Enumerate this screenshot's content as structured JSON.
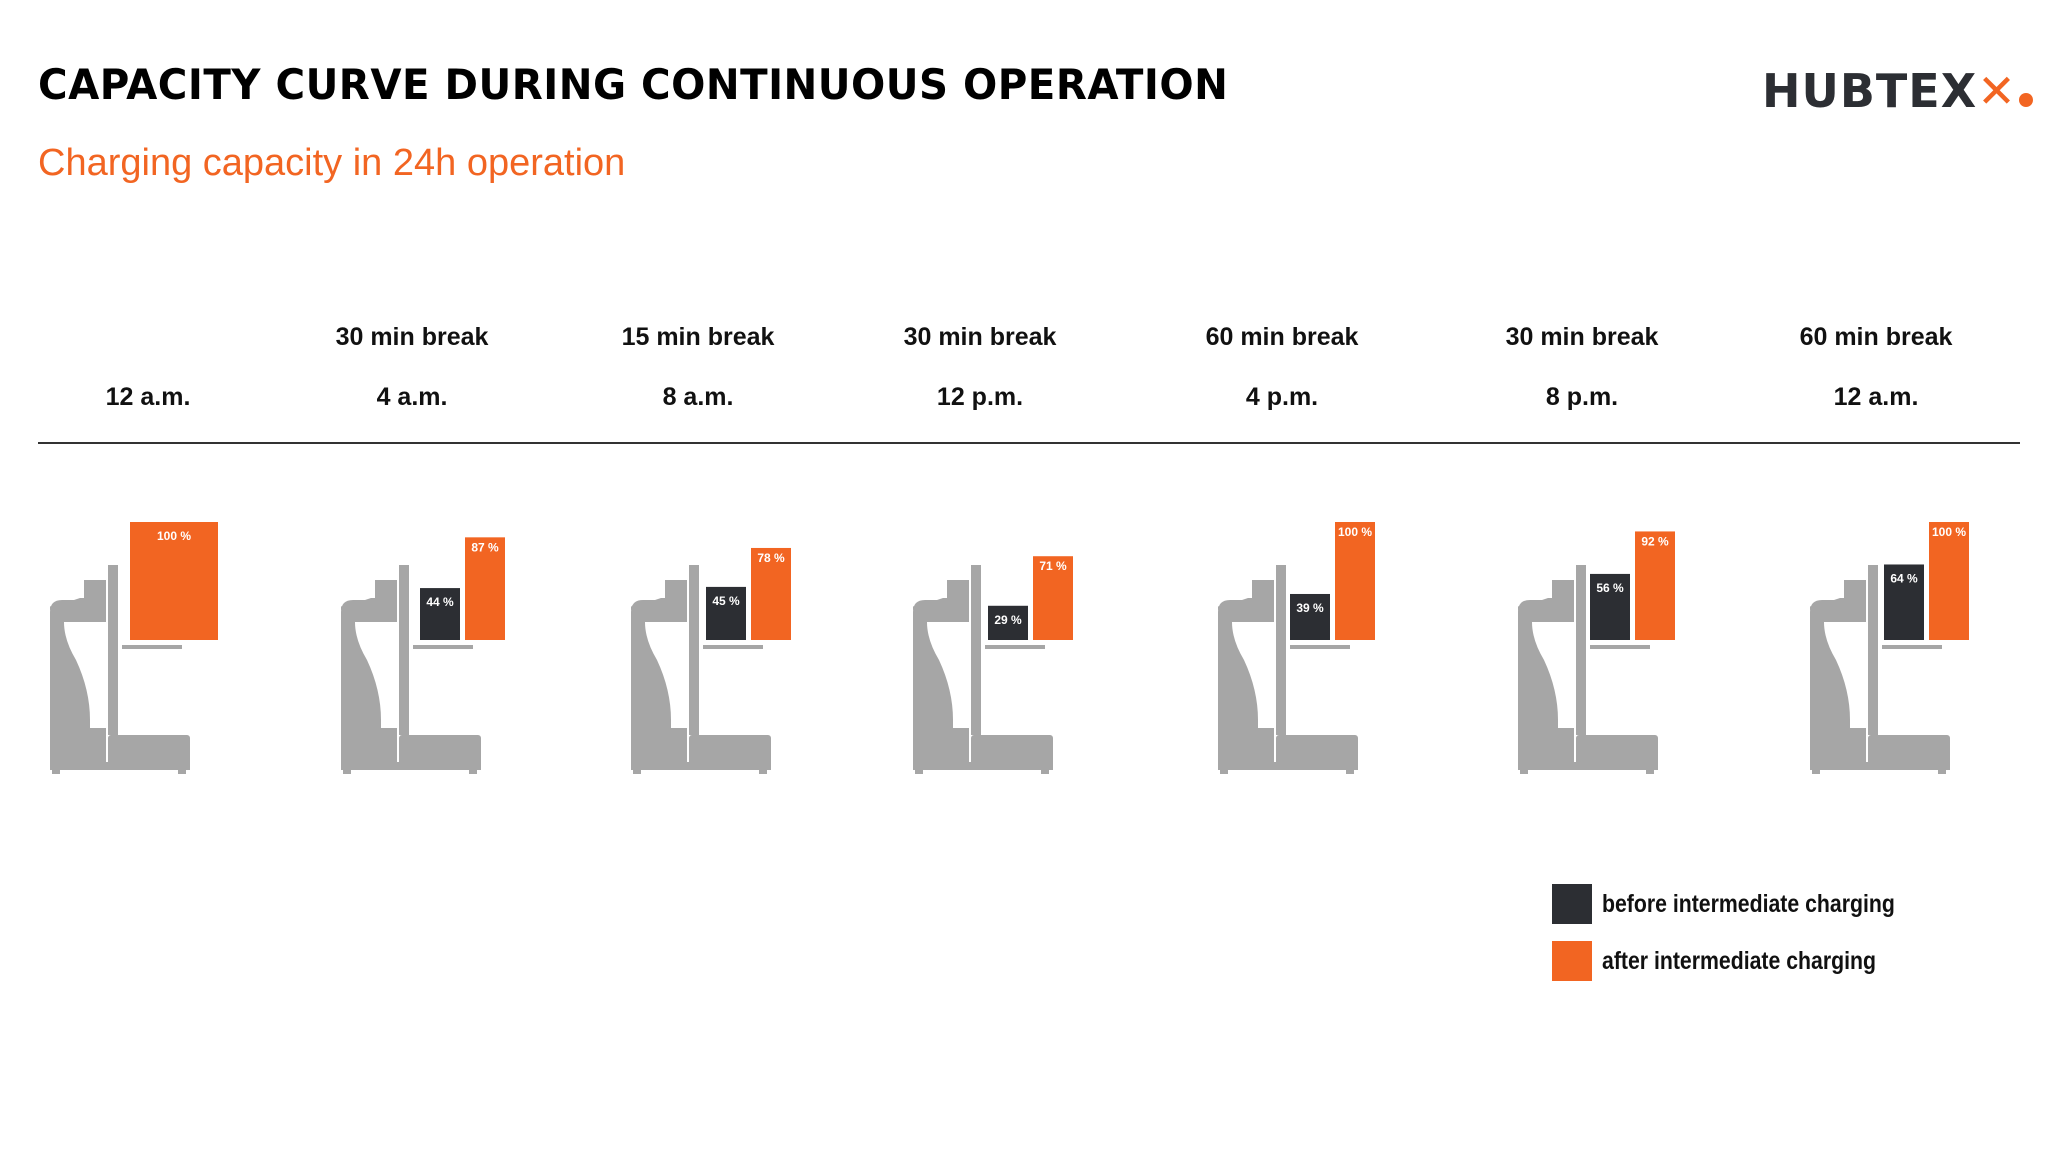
{
  "header": {
    "title": "CAPACITY CURVE DURING CONTINUOUS OPERATION",
    "subtitle": "Charging capacity in 24h operation",
    "logo_text": "HUBTEX",
    "logo_icon": "x-dot-logo-mark"
  },
  "colors": {
    "before": "#2c2e33",
    "after": "#f26522",
    "truck": "#a6a6a6",
    "subtitle": "#f26522"
  },
  "chart_data": {
    "type": "bar",
    "title": "CAPACITY CURVE DURING CONTINUOUS OPERATION",
    "subtitle": "Charging capacity in 24h operation",
    "categories": [
      "12 a.m.",
      "4 a.m.",
      "8 a.m.",
      "12 p.m.",
      "4 p.m.",
      "8 p.m.",
      "12 a.m."
    ],
    "breaks": [
      "",
      "30 min break",
      "15 min break",
      "30 min break",
      "60 min break",
      "30 min break",
      "60 min break"
    ],
    "series": [
      {
        "name": "before intermediate charging",
        "values": [
          null,
          44,
          45,
          29,
          39,
          56,
          64
        ],
        "labels": [
          "",
          "44 %",
          "45 %",
          "29 %",
          "39 %",
          "56 %",
          "64 %"
        ]
      },
      {
        "name": "after intermediate charging",
        "values": [
          100,
          87,
          78,
          71,
          100,
          92,
          100
        ],
        "labels": [
          "100 %",
          "87 %",
          "78 %",
          "71 %",
          "100 %",
          "92 %",
          "100 %"
        ]
      }
    ],
    "ylim": [
      0,
      100
    ],
    "legend_position": "bottom-right",
    "icon": "forklift-icon"
  }
}
